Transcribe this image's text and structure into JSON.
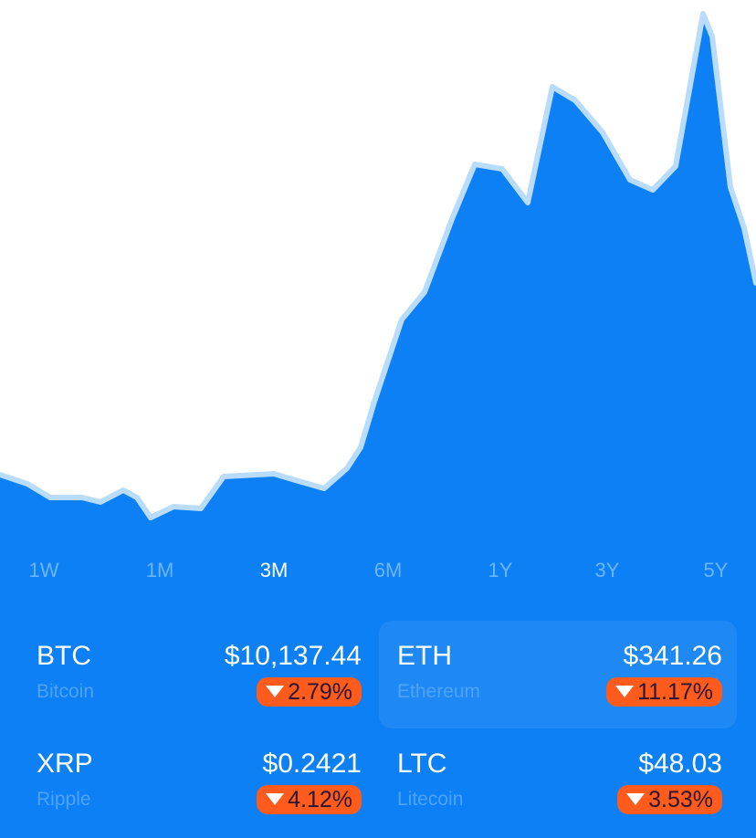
{
  "range_tabs": [
    "1W",
    "1M",
    "3M",
    "6M",
    "1Y",
    "3Y",
    "5Y"
  ],
  "selected_tab_index": 2,
  "highlighted_coin_index": 1,
  "coins": [
    {
      "symbol": "BTC",
      "name": "Bitcoin",
      "price": "$10,137.44",
      "change": "2.79%"
    },
    {
      "symbol": "ETH",
      "name": "Ethereum",
      "price": "$341.26",
      "change": "11.17%"
    },
    {
      "symbol": "XRP",
      "name": "Ripple",
      "price": "$0.2421",
      "change": "4.12%"
    },
    {
      "symbol": "LTC",
      "name": "Litecoin",
      "price": "$48.03",
      "change": "3.53%"
    }
  ]
}
